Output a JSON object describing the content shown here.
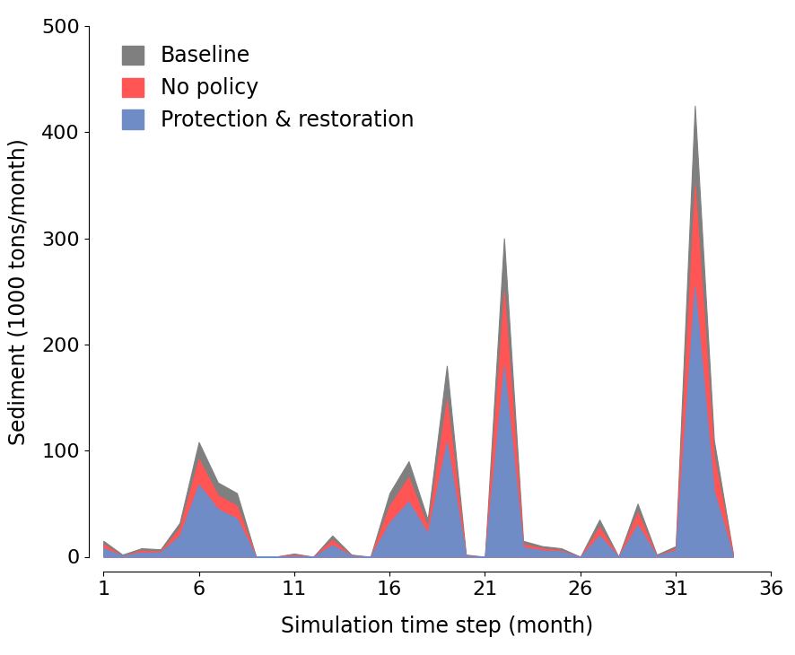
{
  "chart_data": {
    "type": "area",
    "x_label": "Simulation time step (month)",
    "y_label": "Sediment (1000 tons/month)",
    "x": [
      1,
      2,
      3,
      4,
      5,
      6,
      7,
      8,
      9,
      10,
      11,
      12,
      13,
      14,
      15,
      16,
      17,
      18,
      19,
      20,
      21,
      22,
      23,
      24,
      25,
      26,
      27,
      28,
      29,
      30,
      31,
      32,
      33,
      34
    ],
    "series": [
      {
        "name": "Baseline",
        "color": "#7f7f7f",
        "values": [
          15,
          2,
          8,
          7,
          32,
          108,
          70,
          60,
          0,
          0,
          3,
          0,
          20,
          2,
          0,
          60,
          90,
          35,
          180,
          2,
          0,
          300,
          15,
          10,
          8,
          0,
          35,
          0,
          50,
          2,
          10,
          425,
          110,
          3
        ]
      },
      {
        "name": "No policy",
        "color": "#ff5555",
        "values": [
          12,
          1,
          6,
          5,
          27,
          92,
          58,
          48,
          0,
          0,
          2,
          0,
          16,
          1,
          0,
          48,
          75,
          28,
          148,
          1,
          0,
          250,
          12,
          8,
          6,
          0,
          28,
          0,
          42,
          1,
          8,
          350,
          95,
          2
        ]
      },
      {
        "name": "Protection & restoration",
        "color": "#6f8cc6",
        "values": [
          8,
          1,
          4,
          4,
          20,
          68,
          45,
          36,
          0,
          0,
          1,
          0,
          11,
          1,
          0,
          32,
          52,
          22,
          108,
          1,
          0,
          180,
          9,
          6,
          5,
          0,
          20,
          0,
          30,
          1,
          6,
          255,
          62,
          1
        ]
      }
    ],
    "xlim": [
      1,
      36
    ],
    "xticks": [
      1,
      6,
      11,
      16,
      21,
      26,
      31,
      36
    ],
    "ylim": [
      0,
      500
    ],
    "yticks": [
      0,
      100,
      200,
      300,
      400,
      500
    ],
    "legend": "upper left",
    "grid": false
  }
}
